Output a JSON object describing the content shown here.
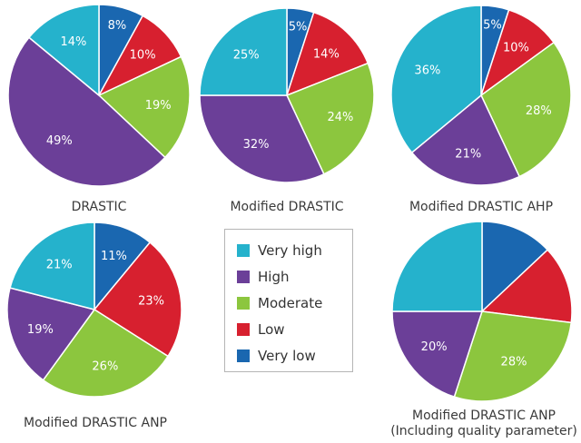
{
  "categories": [
    "Very low",
    "Low",
    "Moderate",
    "High",
    "Very high"
  ],
  "colors": {
    "Very low": "#1a67b0",
    "Low": "#d7202f",
    "Moderate": "#8cc63e",
    "High": "#6b3f98",
    "Very high": "#25b2cc"
  },
  "legend": {
    "items": [
      {
        "label": "Very high",
        "color": "#25b2cc"
      },
      {
        "label": "High",
        "color": "#6b3f98"
      },
      {
        "label": "Moderate",
        "color": "#8cc63e"
      },
      {
        "label": "Low",
        "color": "#d7202f"
      },
      {
        "label": "Very low",
        "color": "#1a67b0"
      }
    ]
  },
  "chart_data": [
    {
      "type": "pie",
      "title": "DRASTIC",
      "categories": [
        "Very low",
        "Low",
        "Moderate",
        "High",
        "Very high"
      ],
      "values": [
        8,
        10,
        19,
        49,
        14
      ],
      "labels": [
        "8%",
        "10%",
        "19%",
        "49%",
        "14%"
      ]
    },
    {
      "type": "pie",
      "title": "Modified DRASTIC",
      "categories": [
        "Very low",
        "Low",
        "Moderate",
        "High",
        "Very high"
      ],
      "values": [
        5,
        14,
        24,
        32,
        25
      ],
      "labels": [
        "5%",
        "14%",
        "24%",
        "32%",
        "25%"
      ]
    },
    {
      "type": "pie",
      "title": "Modified DRASTIC AHP",
      "categories": [
        "Very low",
        "Low",
        "Moderate",
        "High",
        "Very high"
      ],
      "values": [
        5,
        10,
        28,
        21,
        36
      ],
      "labels": [
        "5%",
        "10%",
        "28%",
        "21%",
        "36%"
      ]
    },
    {
      "type": "pie",
      "title": "Modified DRASTIC ANP",
      "categories": [
        "Very low",
        "Low",
        "Moderate",
        "High",
        "Very high"
      ],
      "values": [
        11,
        23,
        26,
        19,
        21
      ],
      "labels": [
        "11%",
        "23%",
        "26%",
        "19%",
        "21%"
      ]
    },
    {
      "type": "pie",
      "title": "Modified DRASTIC ANP",
      "subtitle": "(Including quality parameter)",
      "categories": [
        "Very low",
        "Low",
        "Moderate",
        "High",
        "Very high"
      ],
      "values": [
        13,
        14,
        28,
        20,
        25
      ],
      "labels": [
        "",
        "",
        "28%",
        "20%",
        ""
      ]
    }
  ]
}
